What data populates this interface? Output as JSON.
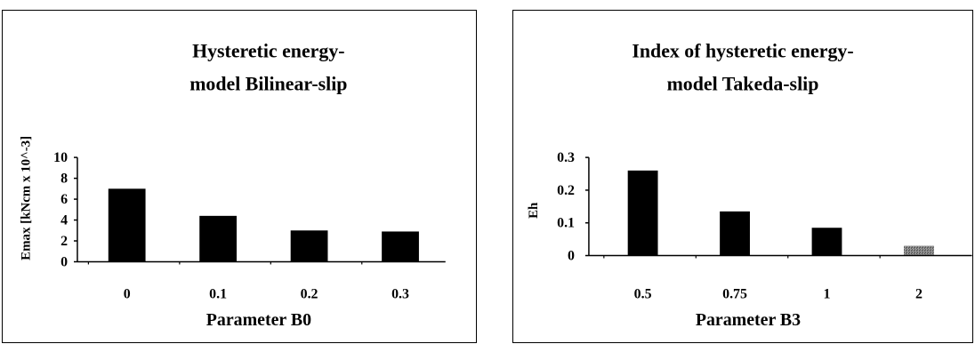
{
  "chart_data": [
    {
      "type": "bar",
      "title_lines": [
        "Hysteretic energy-",
        "model Bilinear-slip"
      ],
      "xlabel": "Parameter B0",
      "ylabel": "Emax [kNcm x 10^-3]",
      "categories": [
        "0",
        "0.1",
        "0.2",
        "0.3"
      ],
      "values": [
        7.0,
        4.4,
        3.0,
        2.9
      ],
      "ylim": [
        0,
        10
      ],
      "yticks": [
        "0",
        "2",
        "4",
        "6",
        "8",
        "10"
      ],
      "grid": false,
      "bar_color": "#000000"
    },
    {
      "type": "bar",
      "title_lines": [
        "Index of hysteretic energy-",
        "model Takeda-slip"
      ],
      "xlabel": "Parameter B3",
      "ylabel": "Eh",
      "categories": [
        "0.5",
        "0.75",
        "1",
        "2"
      ],
      "values": [
        0.26,
        0.135,
        0.085,
        0.03
      ],
      "ylim": [
        0,
        0.3
      ],
      "yticks": [
        "0",
        "0.1",
        "0.2",
        "0.3"
      ],
      "grid": false,
      "bar_color": "#000000"
    }
  ]
}
